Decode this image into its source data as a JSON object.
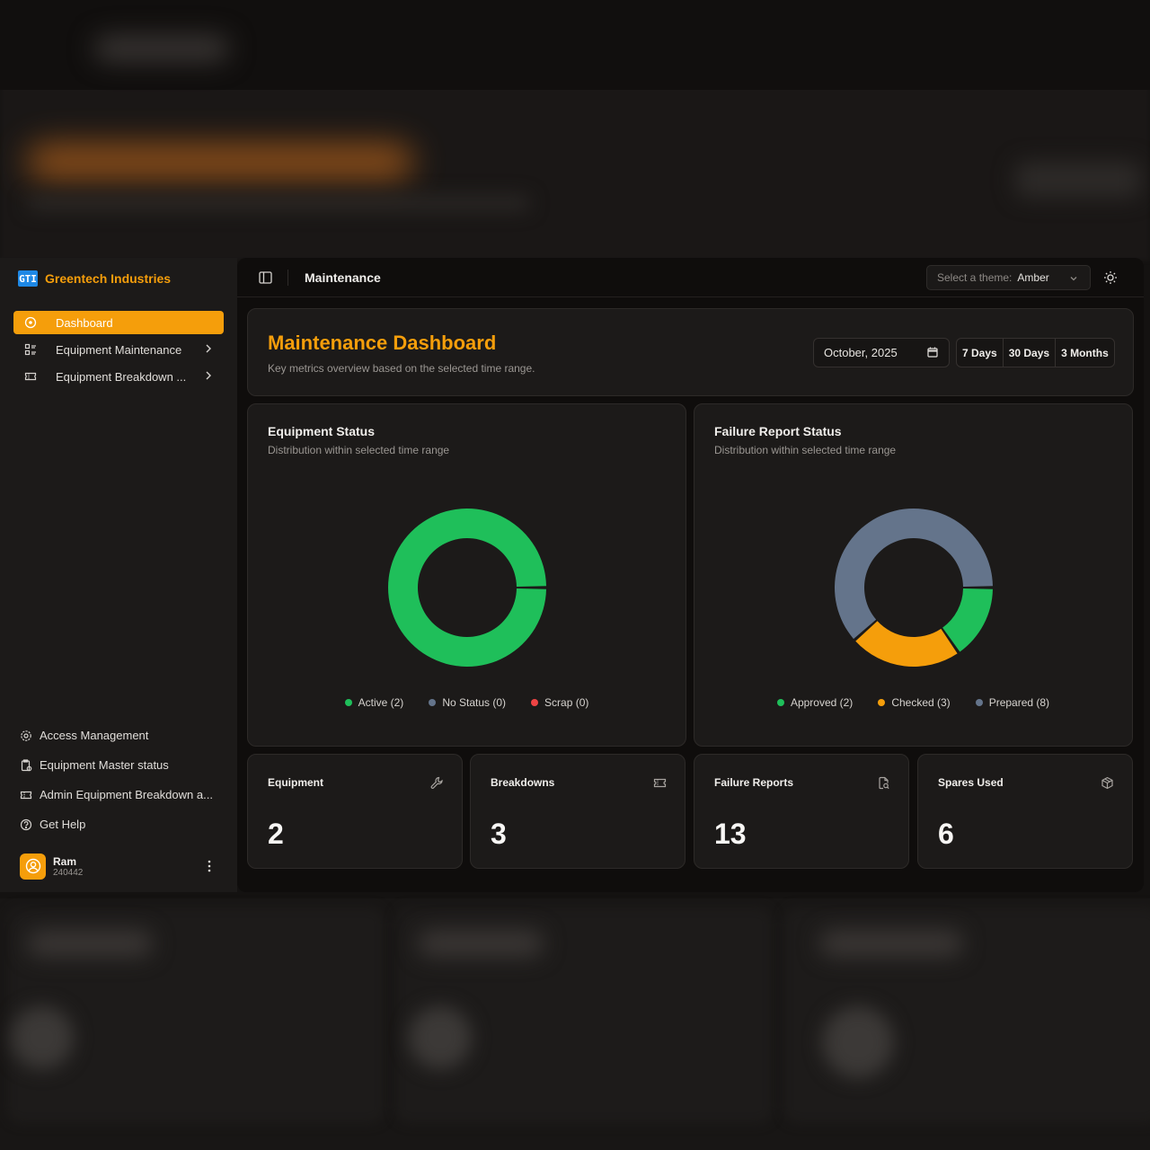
{
  "brand": {
    "logo_text": "GTI",
    "name": "Greentech Industries"
  },
  "sidebar": {
    "nav": [
      {
        "label": "Dashboard",
        "icon": "dashboard-icon",
        "active": true
      },
      {
        "label": "Equipment Maintenance",
        "icon": "list-icon",
        "has_submenu": true
      },
      {
        "label": "Equipment Breakdown ...",
        "icon": "ticket-icon",
        "has_submenu": true
      }
    ],
    "secondary": [
      {
        "label": "Access Management",
        "icon": "gear-icon"
      },
      {
        "label": "Equipment Master status",
        "icon": "clipboard-icon"
      },
      {
        "label": "Admin Equipment Breakdown a...",
        "icon": "ticket-icon"
      },
      {
        "label": "Get Help",
        "icon": "help-icon"
      }
    ],
    "user": {
      "name": "Ram",
      "id": "240442"
    }
  },
  "topbar": {
    "title": "Maintenance",
    "theme_label": "Select a theme:",
    "theme_value": "Amber"
  },
  "hero": {
    "title": "Maintenance Dashboard",
    "subtitle": "Key metrics overview based on the selected time range.",
    "date_value": "October, 2025",
    "ranges": [
      "7 Days",
      "30 Days",
      "3 Months"
    ]
  },
  "colors": {
    "accent": "#f59e0b",
    "green": "#1fbf5a",
    "slate": "#64748b",
    "red": "#ef4444"
  },
  "charts": {
    "equipment": {
      "title": "Equipment Status",
      "subtitle": "Distribution within selected time range",
      "legend": [
        "Active (2)",
        "No Status (0)",
        "Scrap (0)"
      ]
    },
    "failure": {
      "title": "Failure Report Status",
      "subtitle": "Distribution within selected time range",
      "legend": [
        "Approved (2)",
        "Checked (3)",
        "Prepared (8)"
      ]
    }
  },
  "chart_data": [
    {
      "type": "pie",
      "title": "Equipment Status",
      "categories": [
        "Active",
        "No Status",
        "Scrap"
      ],
      "values": [
        2,
        0,
        0
      ],
      "colors": [
        "#1fbf5a",
        "#64748b",
        "#ef4444"
      ]
    },
    {
      "type": "pie",
      "title": "Failure Report Status",
      "categories": [
        "Approved",
        "Checked",
        "Prepared"
      ],
      "values": [
        2,
        3,
        8
      ],
      "colors": [
        "#1fbf5a",
        "#f59e0b",
        "#64748b"
      ]
    }
  ],
  "stats": [
    {
      "title": "Equipment",
      "value": "2",
      "icon": "wrench-icon"
    },
    {
      "title": "Breakdowns",
      "value": "3",
      "icon": "ticket-icon"
    },
    {
      "title": "Failure Reports",
      "value": "13",
      "icon": "file-search-icon"
    },
    {
      "title": "Spares Used",
      "value": "6",
      "icon": "package-icon"
    }
  ]
}
